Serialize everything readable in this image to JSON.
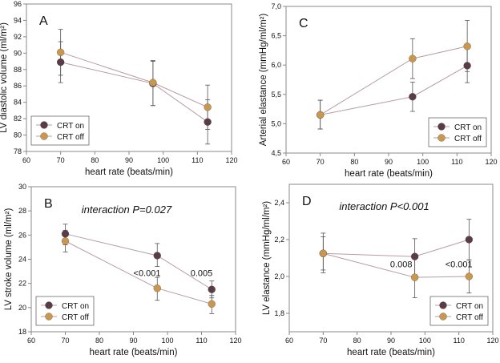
{
  "colors": {
    "crt_on": "#5b3b47",
    "crt_off": "#c9974e",
    "line": "#b89ca2",
    "error": "#555555",
    "axis": "#888888"
  },
  "chart_data": [
    {
      "id": "A",
      "type": "line",
      "panel_label": "A",
      "xlabel": "heart rate (beats/min)",
      "ylabel": "LV diastolic volume (ml/m²)",
      "xlim": [
        60,
        120
      ],
      "ylim": [
        78,
        96
      ],
      "xticks": [
        60,
        70,
        80,
        90,
        100,
        110,
        120
      ],
      "xtick_labels": [
        "60",
        "70",
        "80",
        "90",
        "100",
        "110",
        "120"
      ],
      "yticks": [
        78,
        80,
        82,
        84,
        86,
        88,
        90,
        92,
        94,
        96
      ],
      "ytick_labels": [
        "78",
        "80",
        "82",
        "84",
        "86",
        "88",
        "90",
        "92",
        "94",
        "96"
      ],
      "legend": "bottom-left",
      "series": [
        {
          "name": "CRT on",
          "x": [
            70,
            97,
            113
          ],
          "y": [
            88.9,
            86.3,
            81.6
          ],
          "err_low": [
            86.4,
            83.6,
            78.9
          ],
          "err_high": [
            91.4,
            89.0,
            84.3
          ]
        },
        {
          "name": "CRT off",
          "x": [
            70,
            97,
            113
          ],
          "y": [
            90.1,
            86.4,
            83.4
          ],
          "err_low": [
            87.3,
            83.6,
            80.7
          ],
          "err_high": [
            92.9,
            89.1,
            86.1
          ]
        }
      ],
      "annotations": []
    },
    {
      "id": "C",
      "type": "line",
      "panel_label": "C",
      "xlabel": "heart rate (beats/min)",
      "ylabel": "Arterial elastance (mmHg/ml/m²)",
      "xlim": [
        60,
        120
      ],
      "ylim": [
        4.5,
        7.0
      ],
      "xticks": [
        60,
        70,
        80,
        90,
        100,
        110,
        120
      ],
      "xtick_labels": [
        "60",
        "70",
        "80",
        "90",
        "100",
        "110",
        "120"
      ],
      "yticks": [
        4.5,
        5.0,
        5.5,
        6.0,
        6.5,
        7.0
      ],
      "ytick_labels": [
        "4,5",
        "5,0",
        "5,5",
        "6,0",
        "6,5",
        "7,0"
      ],
      "legend": "bottom-right",
      "series": [
        {
          "name": "CRT on",
          "x": [
            70,
            97,
            113
          ],
          "y": [
            5.15,
            5.46,
            5.99
          ],
          "err_low": [
            4.91,
            5.21,
            5.7
          ],
          "err_high": [
            5.4,
            5.71,
            6.28
          ]
        },
        {
          "name": "CRT off",
          "x": [
            70,
            97,
            113
          ],
          "y": [
            5.15,
            6.11,
            6.32
          ],
          "err_low": [
            4.91,
            5.77,
            5.89
          ],
          "err_high": [
            5.4,
            6.45,
            6.76
          ]
        }
      ],
      "annotations": []
    },
    {
      "id": "B",
      "type": "line",
      "panel_label": "B",
      "xlabel": "heart rate (beats/min)",
      "ylabel": "LV stroke volume (ml/m²)",
      "xlim": [
        60,
        120
      ],
      "ylim": [
        18,
        30
      ],
      "xticks": [
        60,
        70,
        80,
        90,
        100,
        110,
        120
      ],
      "xtick_labels": [
        "60",
        "70",
        "80",
        "90",
        "100",
        "110",
        "120"
      ],
      "yticks": [
        18,
        20,
        22,
        24,
        26,
        28,
        30
      ],
      "ytick_labels": [
        "18",
        "20",
        "22",
        "24",
        "26",
        "28",
        "30"
      ],
      "legend": "bottom-left",
      "series": [
        {
          "name": "CRT on",
          "x": [
            70,
            97,
            113
          ],
          "y": [
            26.1,
            24.3,
            21.5
          ],
          "err_low": [
            25.2,
            23.4,
            20.8
          ],
          "err_high": [
            26.9,
            25.3,
            22.2
          ]
        },
        {
          "name": "CRT off",
          "x": [
            70,
            97,
            113
          ],
          "y": [
            25.5,
            21.6,
            20.3
          ],
          "err_low": [
            24.6,
            20.6,
            19.5
          ],
          "err_high": [
            26.4,
            22.5,
            21.0
          ]
        }
      ],
      "annotations": [
        {
          "text": "interaction P=0.027",
          "x": 88,
          "y": 27.8,
          "italic": true,
          "size": "large"
        },
        {
          "text": "<0.001",
          "x": 94,
          "y": 22.6,
          "italic": false,
          "size": "normal"
        },
        {
          "text": "0.005",
          "x": 110,
          "y": 22.6,
          "italic": false,
          "size": "normal"
        }
      ]
    },
    {
      "id": "D",
      "type": "line",
      "panel_label": "D",
      "xlabel": "heart rate (beats/min)",
      "ylabel": "LV elastance (mmHg/ml/m²)",
      "xlim": [
        60,
        120
      ],
      "ylim": [
        1.7,
        2.5
      ],
      "xticks": [
        60,
        70,
        80,
        90,
        100,
        110,
        120
      ],
      "xtick_labels": [
        "60",
        "70",
        "80",
        "90",
        "100",
        "110",
        "120"
      ],
      "yticks": [
        1.8,
        2.0,
        2.2,
        2.4
      ],
      "ytick_labels": [
        "1,8",
        "2,0",
        "2,2",
        "2,4"
      ],
      "legend": "bottom-right",
      "series": [
        {
          "name": "CRT on",
          "x": [
            70,
            97,
            113
          ],
          "y": [
            2.125,
            2.108,
            2.2
          ],
          "err_low": [
            2.02,
            2.01,
            2.09
          ],
          "err_high": [
            2.235,
            2.205,
            2.31
          ]
        },
        {
          "name": "CRT off",
          "x": [
            70,
            97,
            113
          ],
          "y": [
            2.125,
            1.995,
            2.0
          ],
          "err_low": [
            2.035,
            1.885,
            1.91
          ],
          "err_high": [
            2.215,
            2.1,
            2.09
          ]
        }
      ],
      "annotations": [
        {
          "text": "interaction P<0.001",
          "x": 88,
          "y": 2.36,
          "italic": true,
          "size": "large"
        },
        {
          "text": "0.008",
          "x": 93,
          "y": 2.05,
          "italic": false,
          "size": "normal"
        },
        {
          "text": "<0.001",
          "x": 110,
          "y": 2.05,
          "italic": false,
          "size": "normal"
        }
      ]
    }
  ]
}
